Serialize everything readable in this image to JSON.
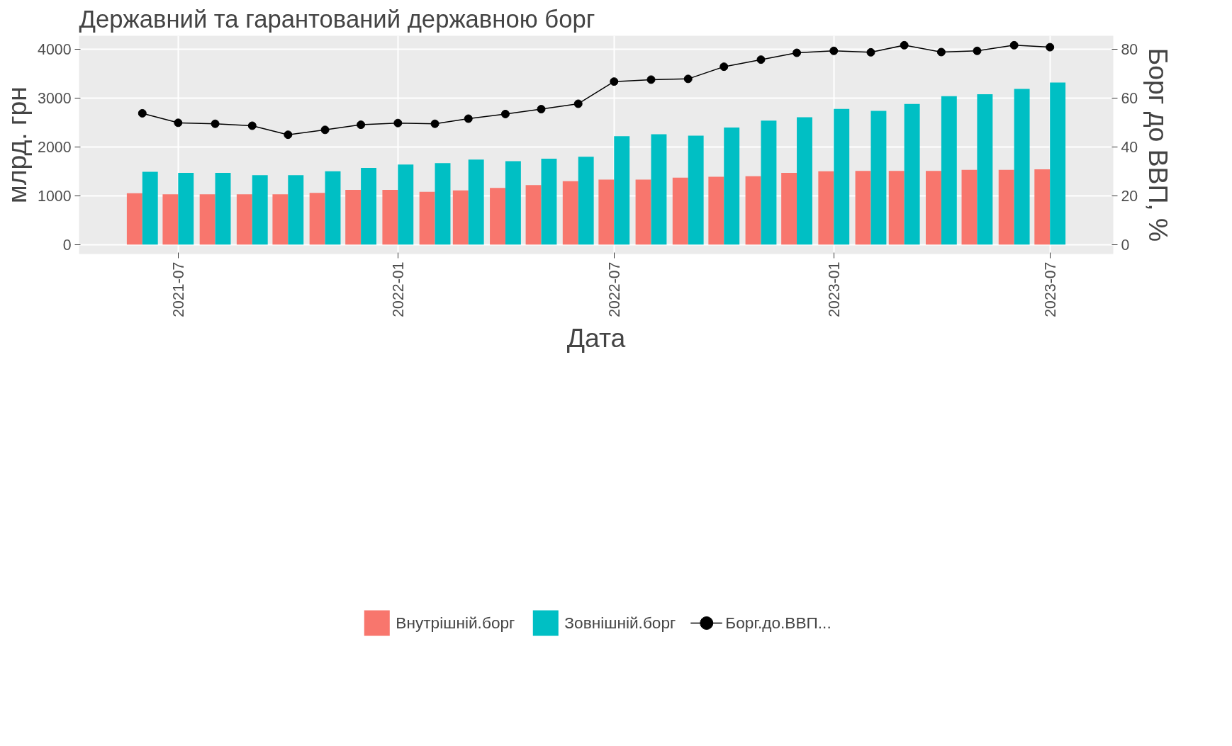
{
  "chart_data": {
    "type": "bar",
    "title": "Державний та гарантований державною борг",
    "xlabel": "Дата",
    "ylabel": "млрд. грн",
    "y2label": "Борг до ВВП, %",
    "x": [
      "2021-06",
      "2021-07",
      "2021-08",
      "2021-09",
      "2021-10",
      "2021-11",
      "2021-12",
      "2022-01",
      "2022-02",
      "2022-03",
      "2022-04",
      "2022-05",
      "2022-06",
      "2022-07",
      "2022-08",
      "2022-09",
      "2022-10",
      "2022-11",
      "2022-12",
      "2023-01",
      "2023-02",
      "2023-03",
      "2023-04",
      "2023-05",
      "2023-06",
      "2023-07"
    ],
    "series": [
      {
        "name": "Внутрішній.борг",
        "color": "#f8766d",
        "values": [
          1050,
          1030,
          1030,
          1030,
          1030,
          1060,
          1120,
          1120,
          1080,
          1110,
          1160,
          1220,
          1300,
          1330,
          1330,
          1370,
          1390,
          1400,
          1470,
          1500,
          1510,
          1510,
          1510,
          1530,
          1530,
          1540
        ]
      },
      {
        "name": "Зовнішній.борг",
        "color": "#00bfc4",
        "values": [
          1490,
          1470,
          1470,
          1420,
          1420,
          1500,
          1570,
          1640,
          1670,
          1740,
          1710,
          1760,
          1800,
          2220,
          2260,
          2230,
          2400,
          2540,
          2610,
          2780,
          2740,
          2880,
          3040,
          3080,
          3190,
          3320
        ]
      },
      {
        "name": "Борг.до.ВВП...",
        "color": "#000000",
        "type": "line",
        "axis": "y2",
        "marker": "circle",
        "values": [
          53.8,
          49.9,
          49.5,
          48.7,
          45.0,
          47.0,
          49.1,
          49.8,
          49.5,
          51.6,
          53.5,
          55.5,
          57.7,
          66.8,
          67.6,
          67.9,
          72.9,
          75.8,
          78.6,
          79.4,
          78.8,
          81.7,
          78.9,
          79.4,
          81.7,
          80.9
        ]
      }
    ],
    "xlim": [
      "2021-04-09",
      "2023-08-23"
    ],
    "xticks": [
      "2021-07",
      "2022-01",
      "2022-07",
      "2023-01",
      "2023-07"
    ],
    "ylim": [
      -194,
      4279
    ],
    "yticks": [
      0,
      1000,
      2000,
      3000,
      4000
    ],
    "y2lim": [
      -3.88,
      85.58
    ],
    "y2ticks": [
      0,
      20,
      40,
      60,
      80
    ],
    "grid": true,
    "legend": "bottom"
  }
}
